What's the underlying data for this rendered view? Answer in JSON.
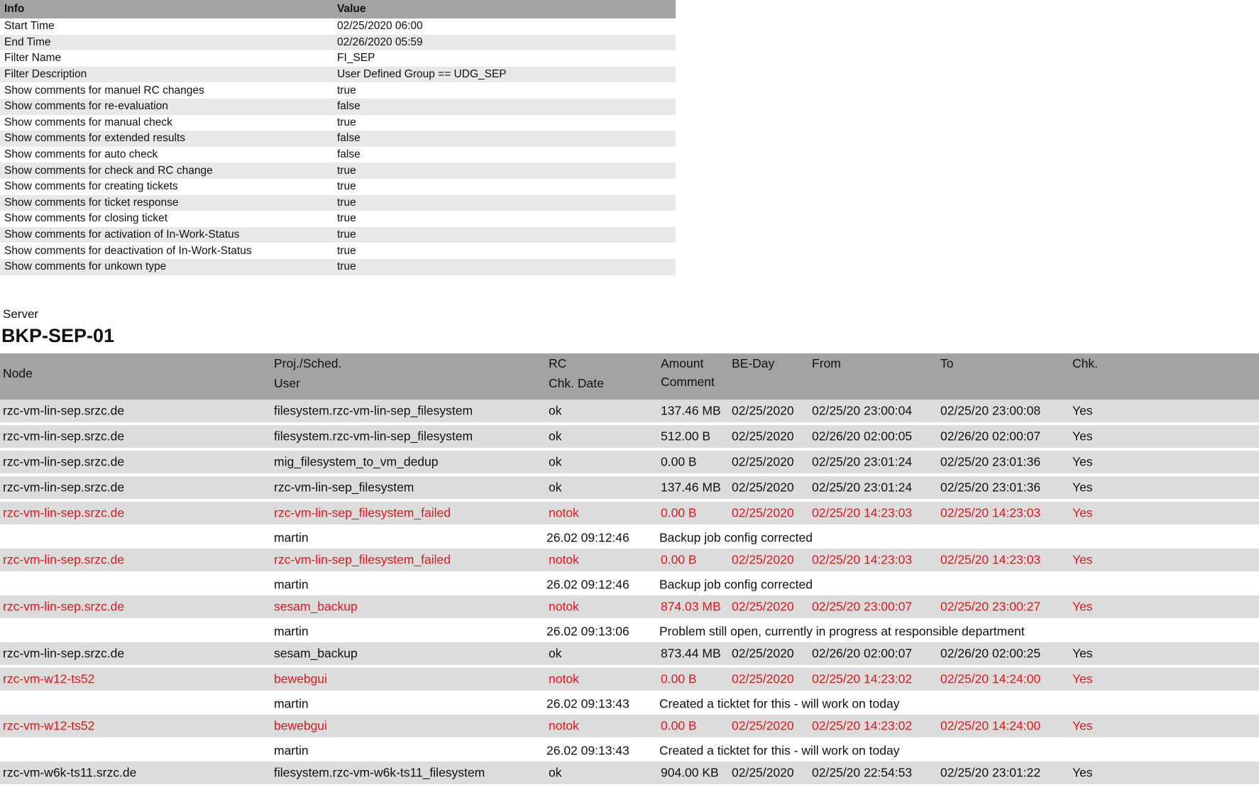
{
  "info_table": {
    "headers": [
      "Info",
      "Value"
    ],
    "rows": [
      [
        "Start Time",
        "02/25/2020 06:00"
      ],
      [
        "End Time",
        "02/26/2020 05:59"
      ],
      [
        "Filter Name",
        "FI_SEP"
      ],
      [
        "Filter Description",
        "User Defined Group == UDG_SEP"
      ],
      [
        "Show comments for manuel RC changes",
        "true"
      ],
      [
        "Show comments for re-evaluation",
        "false"
      ],
      [
        "Show comments for manual check",
        "true"
      ],
      [
        "Show comments for extended results",
        "false"
      ],
      [
        "Show comments for auto check",
        "false"
      ],
      [
        "Show comments for check and RC change",
        "true"
      ],
      [
        "Show comments for creating tickets",
        "true"
      ],
      [
        "Show comments for ticket response",
        "true"
      ],
      [
        "Show comments for closing ticket",
        "true"
      ],
      [
        "Show comments for activation of In-Work-Status",
        "true"
      ],
      [
        "Show comments for deactivation of In-Work-Status",
        "true"
      ],
      [
        "Show comments for unkown type",
        "true"
      ]
    ]
  },
  "server": {
    "label": "Server",
    "name": "BKP-SEP-01"
  },
  "colors": {
    "header_bg": "#a3a3a3",
    "row_bg": "#dcdcdc",
    "error": "#e8141e"
  },
  "main_table": {
    "headers": {
      "node": "Node",
      "proj": "Proj./Sched.",
      "user": "User",
      "rc": "RC",
      "chk_date": "Chk. Date",
      "amount": "Amount",
      "comment": "Comment",
      "be_day": "BE-Day",
      "from": "From",
      "to": "To",
      "chk": "Chk."
    },
    "rows": [
      {
        "type": "data",
        "status": "ok",
        "cells": [
          "rzc-vm-lin-sep.srzc.de",
          "filesystem.rzc-vm-lin-sep_filesystem",
          "ok",
          "137.46 MB",
          "02/25/2020",
          "02/25/20 23:00:04",
          "02/25/20 23:00:08",
          "Yes"
        ]
      },
      {
        "type": "data",
        "status": "ok",
        "cells": [
          "rzc-vm-lin-sep.srzc.de",
          "filesystem.rzc-vm-lin-sep_filesystem",
          "ok",
          "512.00 B",
          "02/25/2020",
          "02/26/20 02:00:05",
          "02/26/20 02:00:07",
          "Yes"
        ]
      },
      {
        "type": "data",
        "status": "ok",
        "cells": [
          "rzc-vm-lin-sep.srzc.de",
          "mig_filesystem_to_vm_dedup",
          "ok",
          "0.00 B",
          "02/25/2020",
          "02/25/20 23:01:24",
          "02/25/20 23:01:36",
          "Yes"
        ]
      },
      {
        "type": "data",
        "status": "ok",
        "cells": [
          "rzc-vm-lin-sep.srzc.de",
          "rzc-vm-lin-sep_filesystem",
          "ok",
          "137.46 MB",
          "02/25/2020",
          "02/25/20 23:01:24",
          "02/25/20 23:01:36",
          "Yes"
        ]
      },
      {
        "type": "data",
        "status": "notok",
        "cells": [
          "rzc-vm-lin-sep.srzc.de",
          "rzc-vm-lin-sep_filesystem_failed",
          "notok",
          "0.00 B",
          "02/25/2020",
          "02/25/20 14:23:03",
          "02/25/20 14:23:03",
          "Yes"
        ]
      },
      {
        "type": "comment",
        "cells": [
          "martin",
          "26.02 09:12:46",
          "Backup job config corrected"
        ]
      },
      {
        "type": "data",
        "status": "notok",
        "cells": [
          "rzc-vm-lin-sep.srzc.de",
          "rzc-vm-lin-sep_filesystem_failed",
          "notok",
          "0.00 B",
          "02/25/2020",
          "02/25/20 14:23:03",
          "02/25/20 14:23:03",
          "Yes"
        ]
      },
      {
        "type": "comment",
        "cells": [
          "martin",
          "26.02 09:12:46",
          "Backup job config corrected"
        ]
      },
      {
        "type": "data",
        "status": "notok",
        "cells": [
          "rzc-vm-lin-sep.srzc.de",
          "sesam_backup",
          "notok",
          "874.03 MB",
          "02/25/2020",
          "02/25/20 23:00:07",
          "02/25/20 23:00:27",
          "Yes"
        ]
      },
      {
        "type": "comment",
        "cells": [
          "martin",
          "26.02 09:13:06",
          "Problem still open, currently in progress at responsible department"
        ]
      },
      {
        "type": "data",
        "status": "ok",
        "cells": [
          "rzc-vm-lin-sep.srzc.de",
          "sesam_backup",
          "ok",
          "873.44 MB",
          "02/25/2020",
          "02/26/20 02:00:07",
          "02/26/20 02:00:25",
          "Yes"
        ]
      },
      {
        "type": "data",
        "status": "notok",
        "cells": [
          "rzc-vm-w12-ts52",
          "bewebgui",
          "notok",
          "0.00 B",
          "02/25/2020",
          "02/25/20 14:23:02",
          "02/25/20 14:24:00",
          "Yes"
        ]
      },
      {
        "type": "comment",
        "cells": [
          "martin",
          "26.02 09:13:43",
          "Created a ticktet for this - will work on today"
        ]
      },
      {
        "type": "data",
        "status": "notok",
        "cells": [
          "rzc-vm-w12-ts52",
          "bewebgui",
          "notok",
          "0.00 B",
          "02/25/2020",
          "02/25/20 14:23:02",
          "02/25/20 14:24:00",
          "Yes"
        ]
      },
      {
        "type": "comment",
        "cells": [
          "martin",
          "26.02 09:13:43",
          "Created a ticktet for this - will work on today"
        ]
      },
      {
        "type": "data",
        "status": "ok",
        "cells": [
          "rzc-vm-w6k-ts11.srzc.de",
          "filesystem.rzc-vm-w6k-ts11_filesystem",
          "ok",
          "904.00 KB",
          "02/25/2020",
          "02/25/20 22:54:53",
          "02/25/20 23:01:22",
          "Yes"
        ]
      }
    ]
  }
}
